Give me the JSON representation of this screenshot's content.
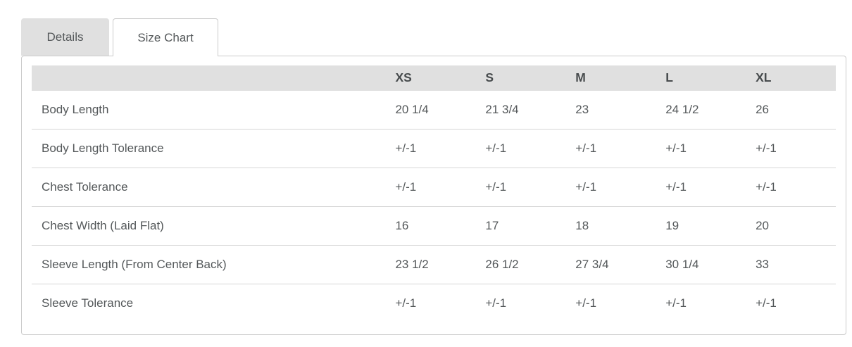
{
  "tabs": [
    {
      "label": "Details",
      "active": false
    },
    {
      "label": "Size Chart",
      "active": true
    }
  ],
  "size_chart": {
    "columns": [
      "",
      "XS",
      "S",
      "M",
      "L",
      "XL"
    ],
    "rows": [
      {
        "label": "Body Length",
        "values": [
          "20 1/4",
          "21 3/4",
          "23",
          "24 1/2",
          "26"
        ]
      },
      {
        "label": "Body Length Tolerance",
        "values": [
          "+/-1",
          "+/-1",
          "+/-1",
          "+/-1",
          "+/-1"
        ]
      },
      {
        "label": "Chest Tolerance",
        "values": [
          "+/-1",
          "+/-1",
          "+/-1",
          "+/-1",
          "+/-1"
        ]
      },
      {
        "label": "Chest Width (Laid Flat)",
        "values": [
          "16",
          "17",
          "18",
          "19",
          "20"
        ]
      },
      {
        "label": "Sleeve Length (From Center Back)",
        "values": [
          "23 1/2",
          "26 1/2",
          "27 3/4",
          "30 1/4",
          "33"
        ]
      },
      {
        "label": "Sleeve Tolerance",
        "values": [
          "+/-1",
          "+/-1",
          "+/-1",
          "+/-1",
          "+/-1"
        ]
      }
    ]
  },
  "colors": {
    "header_bg": "#e0e0e0",
    "tab_inactive_bg": "#e0e0e0",
    "panel_border": "#cbcbcb",
    "row_divider": "#d6d6d6",
    "text": "#54585a",
    "header_text": "#474b4d"
  }
}
